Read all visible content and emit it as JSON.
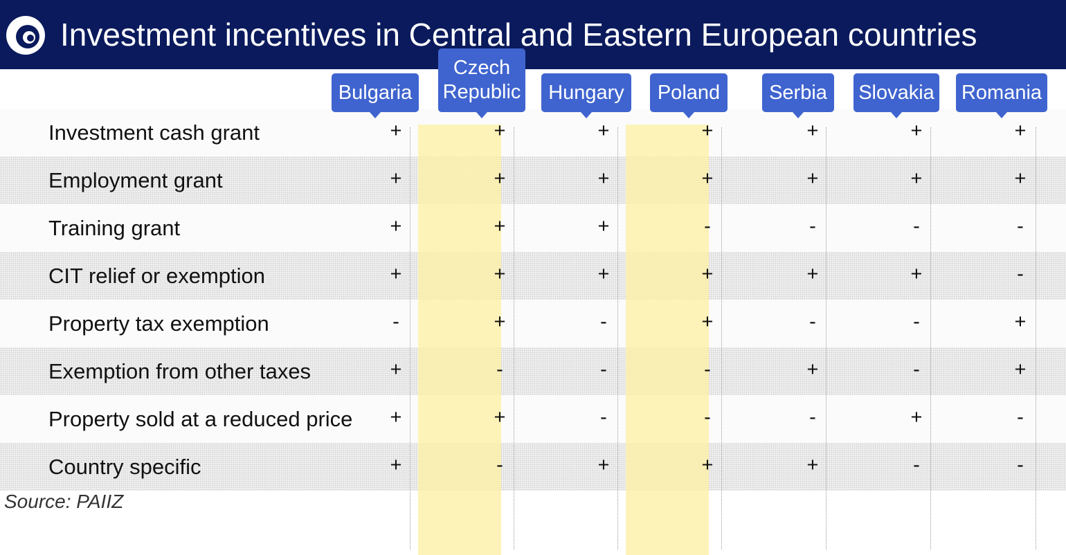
{
  "header": {
    "title": "Investment incentives in Central and Eastern European countries",
    "logo_icon": "circular-arc-logo-icon"
  },
  "colors": {
    "title_bar": "#0a1a5c",
    "country_tag": "#3f64cf",
    "highlight": "#fdf0aa"
  },
  "chart_data": {
    "type": "table",
    "title": "Investment incentives in Central and Eastern European countries",
    "columns": [
      "Bulgaria",
      "Czech Republic",
      "Hungary",
      "Poland",
      "Serbia",
      "Slovakia",
      "Romania"
    ],
    "highlighted_columns": [
      "Czech Republic",
      "Poland"
    ],
    "rows": [
      {
        "label": "Investment cash grant",
        "values": [
          "+",
          "+",
          "+",
          "+",
          "+",
          "+",
          "+"
        ]
      },
      {
        "label": "Employment grant",
        "values": [
          "+",
          "+",
          "+",
          "+",
          "+",
          "+",
          "+"
        ]
      },
      {
        "label": "Training grant",
        "values": [
          "+",
          "+",
          "+",
          "-",
          "-",
          "-",
          "-"
        ]
      },
      {
        "label": "CIT relief or exemption",
        "values": [
          "+",
          "+",
          "+",
          "+",
          "+",
          "+",
          "-"
        ]
      },
      {
        "label": "Property tax exemption",
        "values": [
          "-",
          "+",
          "-",
          "+",
          "-",
          "-",
          "+"
        ]
      },
      {
        "label": "Exemption from other taxes",
        "values": [
          "+",
          "-",
          "-",
          "-",
          "+",
          "-",
          "+"
        ]
      },
      {
        "label": "Property sold at a reduced price",
        "values": [
          "+",
          "+",
          "-",
          "-",
          "-",
          "+",
          "-"
        ]
      },
      {
        "label": "Country specific",
        "values": [
          "+",
          "-",
          "+",
          "+",
          "+",
          "-",
          "-"
        ]
      }
    ]
  },
  "footer": {
    "source": "Source: PAIIZ"
  }
}
